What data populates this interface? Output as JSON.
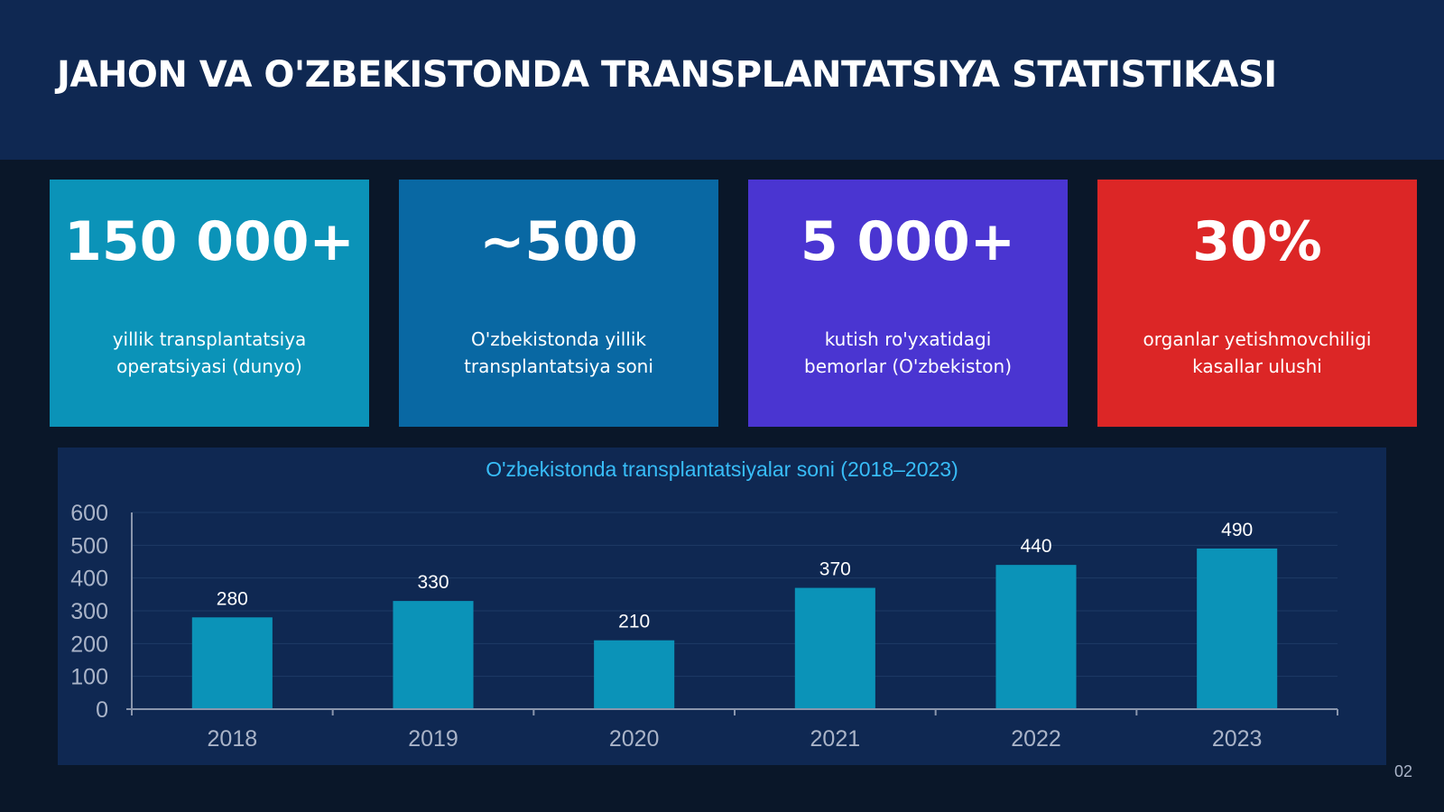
{
  "slide": {
    "title": "JAHON VA O'ZBEKISTONDA TRANSPLANTATSIYA STATISTIKASI",
    "page_number": "02"
  },
  "stats": [
    {
      "value": "150 000+",
      "label": "yillik transplantatsiya\noperatsiyasi (dunyo)",
      "color": "#0b93b8"
    },
    {
      "value": "~500",
      "label": "O'zbekistonda yillik\ntransplantatsiya soni",
      "color": "#0968a3"
    },
    {
      "value": "5 000+",
      "label": "kutish ro'yxatidagi\nbemorlar (O'zbekiston)",
      "color": "#4a35d1"
    },
    {
      "value": "30%",
      "label": "organlar yetishmovchiligi\nkasallar ulushi",
      "color": "#dc2626"
    }
  ],
  "chart_data": {
    "type": "bar",
    "title": "O'zbekistonda transplantatsiyalar soni (2018–2023)",
    "categories": [
      "2018",
      "2019",
      "2020",
      "2021",
      "2022",
      "2023"
    ],
    "values": [
      280,
      330,
      210,
      370,
      440,
      490
    ],
    "data_labels": [
      "280",
      "330",
      "210",
      "370",
      "440",
      "490"
    ],
    "yticks": [
      "0",
      "100",
      "200",
      "300",
      "400",
      "500",
      "600"
    ],
    "ylim": [
      0,
      600
    ],
    "grid": true,
    "bar_color": "#0b93b8",
    "title_color": "#38bdf8"
  }
}
